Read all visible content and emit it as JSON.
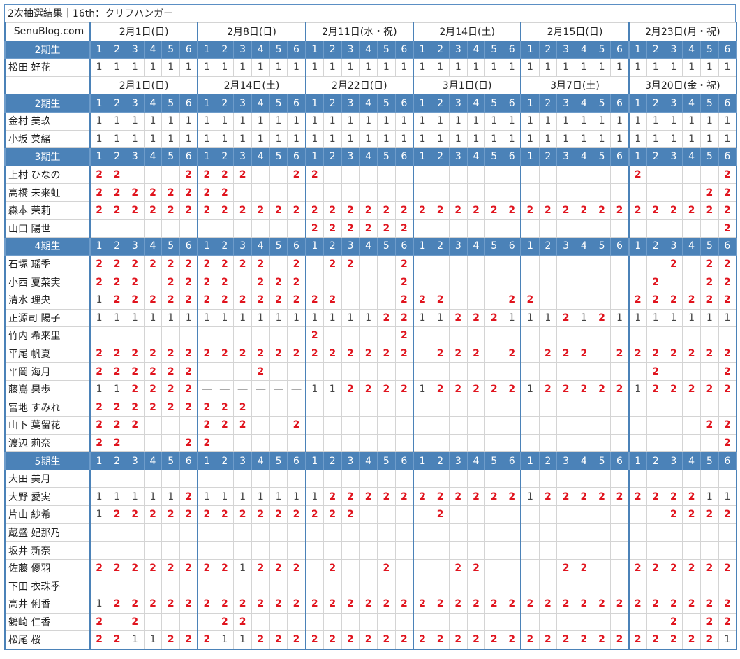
{
  "title": "2次抽選結果｜16th：クリフハンガー",
  "site": "SenuBlog.com",
  "slot_labels": [
    "1",
    "2",
    "3",
    "4",
    "5",
    "6"
  ],
  "sections": [
    {
      "dates": [
        "2月1日(日)",
        "2月8日(日)",
        "2月11日(水・祝)",
        "2月14日(土)",
        "2月15日(日)",
        "2月23日(月・祝)"
      ],
      "groups": [
        {
          "gen": "2期生",
          "members": [
            {
              "name": "松田 好花",
              "v": "111111 111111 111111 111111 111111 111111"
            }
          ]
        }
      ]
    },
    {
      "dates": [
        "2月1日(日)",
        "2月14日(土)",
        "2月22日(日)",
        "3月1日(日)",
        "3月7日(土)",
        "3月20日(金・祝)"
      ],
      "groups": [
        {
          "gen": "2期生",
          "members": [
            {
              "name": "金村 美玖",
              "v": "111111 111111 111111 111111 111111 111111"
            },
            {
              "name": "小坂 菜緒",
              "v": "111111 111111 111111 111111 111111 111111"
            }
          ]
        },
        {
          "gen": "3期生",
          "members": [
            {
              "name": "上村 ひなの",
              "v": "22...2 222..2 2..... ...... ...... 2....2"
            },
            {
              "name": "高橋 未来虹",
              "v": "222222 22.... ...... ...... ...... ....22"
            },
            {
              "name": "森本 茉莉",
              "v": "222222 222222 222222 222222 222222 222222"
            },
            {
              "name": "山口 陽世",
              "v": "...... ...... 222222 ...... ...... .....2"
            }
          ]
        },
        {
          "gen": "4期生",
          "members": [
            {
              "name": "石塚 瑶季",
              "v": "222222 2222.2 .22..2 ...... ...... ..2.22"
            },
            {
              "name": "小西 夏菜実",
              "v": "222.22 22.222 .....2 ...... ...... .2..22"
            },
            {
              "name": "清水 理央",
              "v": "122222 222222 22...2 22...2 2..... 222222"
            },
            {
              "name": "正源司 陽子",
              "v": "111111 111111 111122 112221 112121 111111"
            },
            {
              "name": "竹内 希来里",
              "v": "...... ...... 2....2 ...... ...... ......"
            },
            {
              "name": "平尾 帆夏",
              "v": "222222 222222 222222 .222.2 .222.2 222222"
            },
            {
              "name": "平岡 海月",
              "v": "222222 ...2.. ...... ...... ...... .2...2"
            },
            {
              "name": "藤嶌 果歩",
              "v": "112222 ------ 112222 122222 122222 122222"
            },
            {
              "name": "宮地 すみれ",
              "v": "222222 222... ...... ...... ...... ......"
            },
            {
              "name": "山下 葉留花",
              "v": "222... 222..2 ...... ...... ...... ....22"
            },
            {
              "name": "渡辺 莉奈",
              "v": "22...2 2..... ...... ...... ...... .....2"
            }
          ]
        },
        {
          "gen": "5期生",
          "members": [
            {
              "name": "大田 美月",
              "v": "...... ...... ...... ...... ...... ......"
            },
            {
              "name": "大野 愛実",
              "v": "111112 111111 122222 222222 122222 222211"
            },
            {
              "name": "片山 紗希",
              "v": "122222 222222 222... .2.... ...... ..2222"
            },
            {
              "name": "蔵盛 妃那乃",
              "v": "...... ...... ...... ...... ...... ......"
            },
            {
              "name": "坂井 新奈",
              "v": "...... ...... ...... ...... ...... ......"
            },
            {
              "name": "佐藤 優羽",
              "v": "222222 221222 .2..2. ..22.. ..22.. 222222"
            },
            {
              "name": "下田 衣珠季",
              "v": "...... ...... ...... ...... ...... ......"
            },
            {
              "name": "高井 俐香",
              "v": "122222 222222 222222 222222 222222 222222"
            },
            {
              "name": "鶴崎 仁香",
              "v": "2.2... .22... ...... ...... ...... ..2.22"
            },
            {
              "name": "松尾 桜",
              "v": "221122 211222 222222 222222 222222 222221"
            }
          ]
        }
      ]
    }
  ]
}
